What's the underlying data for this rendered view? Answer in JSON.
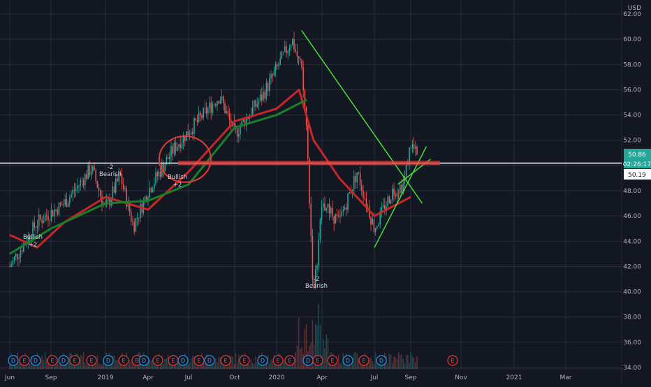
{
  "currency": "USD",
  "price_labels": {
    "last": "50.86",
    "countdown": "02:26:17",
    "line": "50.19"
  },
  "colors": {
    "background": "#131722",
    "grid": "#2a2e39",
    "up": "#26a69a",
    "down": "#ef5350",
    "ma_fast": "#c62828",
    "ma_slow": "#1b7f2a",
    "trend": "#4cdc3a",
    "hline": "#ffffff",
    "resistance": "#e53935",
    "last_price": "#26a69a"
  },
  "icons": {
    "earnings": "E",
    "dividend": "D"
  },
  "chart_data": {
    "type": "candlestick",
    "y_axis": {
      "ticks": [
        "34.00",
        "36.00",
        "38.00",
        "40.00",
        "42.00",
        "44.00",
        "46.00",
        "48.00",
        "50.00",
        "52.00",
        "54.00",
        "56.00",
        "58.00",
        "60.00",
        "62.00"
      ],
      "range": [
        34,
        63
      ]
    },
    "x_axis": {
      "ticks": [
        "Jun",
        "Sep",
        "2019",
        "Apr",
        "Jul",
        "Oct",
        "2020",
        "Apr",
        "Jul",
        "Sep",
        "Nov",
        "2021",
        "Mar"
      ]
    },
    "price_path": [
      {
        "date": "2018-06-01",
        "price": 42.0
      },
      {
        "date": "2018-08-01",
        "price": 45.5
      },
      {
        "date": "2018-10-01",
        "price": 47.0
      },
      {
        "date": "2018-12-01",
        "price": 49.8
      },
      {
        "date": "2019-01-01",
        "price": 46.5
      },
      {
        "date": "2019-02-01",
        "price": 49.2
      },
      {
        "date": "2019-03-01",
        "price": 45.2
      },
      {
        "date": "2019-04-01",
        "price": 48.0
      },
      {
        "date": "2019-06-01",
        "price": 51.5
      },
      {
        "date": "2019-09-01",
        "price": 55.5
      },
      {
        "date": "2019-10-01",
        "price": 52.5
      },
      {
        "date": "2019-12-01",
        "price": 55.5
      },
      {
        "date": "2020-02-01",
        "price": 60.0
      },
      {
        "date": "2020-02-20",
        "price": 57.5
      },
      {
        "date": "2020-03-01",
        "price": 53.0
      },
      {
        "date": "2020-03-15",
        "price": 39.5
      },
      {
        "date": "2020-04-01",
        "price": 47.0
      },
      {
        "date": "2020-05-01",
        "price": 45.5
      },
      {
        "date": "2020-06-01",
        "price": 49.5
      },
      {
        "date": "2020-07-01",
        "price": 45.0
      },
      {
        "date": "2020-08-01",
        "price": 48.0
      },
      {
        "date": "2020-08-20",
        "price": 48.5
      },
      {
        "date": "2020-09-01",
        "price": 51.8
      },
      {
        "date": "2020-09-10",
        "price": 50.5
      }
    ],
    "overlays": [
      {
        "type": "moving_average",
        "points": [
          [
            "2018-06-01",
            44.5
          ],
          [
            "2018-08-01",
            43.5
          ],
          [
            "2018-10-01",
            45.5
          ],
          [
            "2019-01-01",
            47.5
          ],
          [
            "2019-04-01",
            46.5
          ],
          [
            "2019-07-01",
            49.5
          ],
          [
            "2019-10-01",
            53.5
          ],
          [
            "2020-01-01",
            54.5
          ],
          [
            "2020-02-15",
            56.0
          ],
          [
            "2020-03-15",
            52.0
          ],
          [
            "2020-05-01",
            49.0
          ],
          [
            "2020-07-01",
            46.0
          ],
          [
            "2020-09-01",
            47.5
          ]
        ]
      },
      {
        "type": "moving_average",
        "points": [
          [
            "2018-06-01",
            43.0
          ],
          [
            "2018-09-01",
            45.0
          ],
          [
            "2019-01-01",
            47.0
          ],
          [
            "2019-04-01",
            47.2
          ],
          [
            "2019-07-01",
            48.5
          ],
          [
            "2019-10-01",
            53.0
          ],
          [
            "2020-01-01",
            54.0
          ],
          [
            "2020-03-01",
            55.2
          ]
        ]
      },
      {
        "type": "trendline",
        "from": [
          "2020-02-20",
          60.7
        ],
        "to": [
          "2020-09-15",
          47.0
        ]
      },
      {
        "type": "trendline",
        "from": [
          "2020-07-01",
          43.5
        ],
        "to": [
          "2020-09-20",
          51.5
        ]
      },
      {
        "type": "trendline",
        "from": [
          "2020-08-10",
          48.5
        ],
        "to": [
          "2020-09-25",
          50.5
        ]
      },
      {
        "type": "horizontal_line",
        "value": 50.19
      },
      {
        "type": "resistance_band",
        "value": 50.2
      },
      {
        "type": "ellipse",
        "center": [
          "2019-06-01",
          50.5
        ]
      }
    ],
    "annotations": [
      {
        "text": "Bullish",
        "sub": "+2"
      },
      {
        "text": "Bearish",
        "sub": "-2"
      },
      {
        "text": "Bullish",
        "sub": "+2"
      },
      {
        "text": "Bearish",
        "sub": "-2"
      }
    ],
    "event_markers": [
      "D",
      "E",
      "D",
      "E",
      "D",
      "E",
      "E",
      "D",
      "E",
      "E",
      "D",
      "E",
      "E",
      "D",
      "E",
      "D",
      "E",
      "E",
      "D",
      "E",
      "E",
      "D",
      "E",
      "E",
      "D",
      "E",
      "D",
      "E"
    ],
    "grid": true
  }
}
